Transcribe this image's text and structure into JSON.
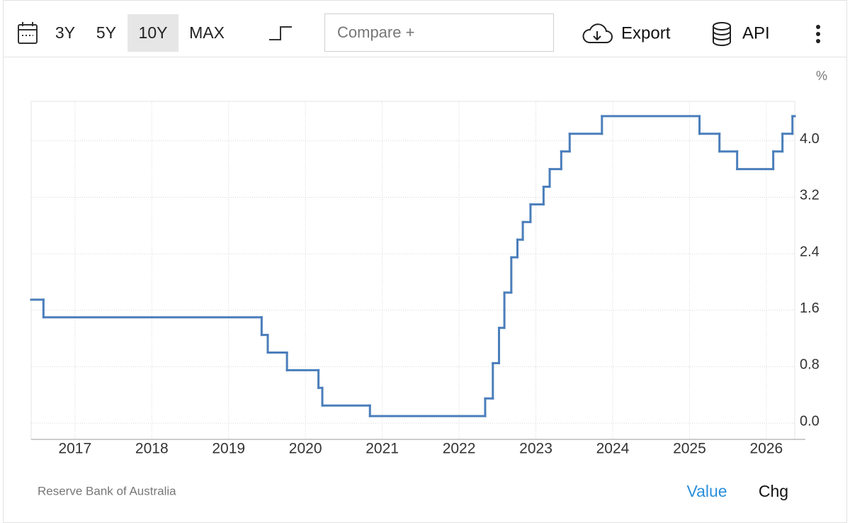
{
  "toolbar": {
    "ranges": [
      "3Y",
      "5Y",
      "10Y",
      "MAX"
    ],
    "active_range": 2,
    "compare_placeholder": "Compare +",
    "export": "Export",
    "api": "API"
  },
  "chart_data": {
    "type": "step",
    "unit": "%",
    "color": "#4a7ebb",
    "x": [
      2016.43,
      2016.59,
      2019.43,
      2019.51,
      2019.76,
      2020.17,
      2020.22,
      2020.84,
      2022.34,
      2022.44,
      2022.52,
      2022.59,
      2022.68,
      2022.76,
      2022.83,
      2022.93,
      2023.1,
      2023.18,
      2023.33,
      2023.44,
      2023.86,
      2025.13,
      2025.39,
      2025.62,
      2026.09,
      2026.21,
      2026.34
    ],
    "values": [
      1.75,
      1.5,
      1.25,
      1.0,
      0.75,
      0.5,
      0.25,
      0.1,
      0.35,
      0.85,
      1.35,
      1.85,
      2.35,
      2.6,
      2.85,
      3.1,
      3.35,
      3.6,
      3.85,
      4.1,
      4.35,
      4.1,
      3.85,
      3.6,
      3.85,
      4.1,
      4.35
    ],
    "xlim": [
      2016.43,
      2026.37
    ],
    "xticks": [
      2017,
      2018,
      2019,
      2020,
      2021,
      2022,
      2023,
      2024,
      2025,
      2026
    ],
    "ylim": [
      -0.23,
      4.56
    ],
    "yticks": [
      {
        "value": 0,
        "label": "0.0"
      },
      0.8,
      1.6,
      2.4,
      3.2,
      {
        "value": 4,
        "label": "4.0"
      }
    ],
    "grid": true
  },
  "source": "Reserve Bank of Australia",
  "tabs": [
    "Value",
    "Chg"
  ],
  "active_tab": 0
}
